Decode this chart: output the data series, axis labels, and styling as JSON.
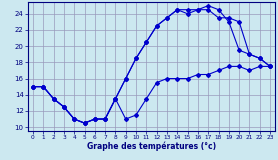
{
  "xlabel": "Graphe des températures (°c)",
  "bg_color": "#cce8f0",
  "grid_color": "#9999bb",
  "line_color": "#0000cc",
  "xlim": [
    -0.5,
    23.5
  ],
  "ylim": [
    9.5,
    25.5
  ],
  "xticks": [
    0,
    1,
    2,
    3,
    4,
    5,
    6,
    7,
    8,
    9,
    10,
    11,
    12,
    13,
    14,
    15,
    16,
    17,
    18,
    19,
    20,
    21,
    22,
    23
  ],
  "yticks": [
    10,
    12,
    14,
    16,
    18,
    20,
    22,
    24
  ],
  "line1_x": [
    0,
    1,
    2,
    3,
    4,
    5,
    6,
    7,
    8,
    9,
    10,
    11,
    12,
    13,
    14,
    15,
    16,
    17,
    18,
    19,
    20,
    21,
    22,
    23
  ],
  "line1_y": [
    15.0,
    15.0,
    13.5,
    12.5,
    11.0,
    10.5,
    11.0,
    11.0,
    13.5,
    11.0,
    11.5,
    13.5,
    15.5,
    16.0,
    16.0,
    16.0,
    16.5,
    16.5,
    17.0,
    17.5,
    17.5,
    17.0,
    17.5,
    17.5
  ],
  "line2_x": [
    0,
    1,
    2,
    3,
    4,
    5,
    6,
    7,
    8,
    9,
    10,
    11,
    12,
    13,
    14,
    15,
    16,
    17,
    18,
    19,
    20,
    21,
    22,
    23
  ],
  "line2_y": [
    15.0,
    15.0,
    13.5,
    12.5,
    11.0,
    10.5,
    11.0,
    11.0,
    13.5,
    16.0,
    18.5,
    20.5,
    22.5,
    23.5,
    24.5,
    24.5,
    24.5,
    25.0,
    24.5,
    23.0,
    19.5,
    19.0,
    18.5,
    17.5
  ],
  "line3_x": [
    0,
    1,
    2,
    3,
    4,
    5,
    6,
    7,
    8,
    9,
    10,
    11,
    12,
    13,
    14,
    15,
    16,
    17,
    18,
    19,
    20,
    21,
    22,
    23
  ],
  "line3_y": [
    15.0,
    15.0,
    13.5,
    12.5,
    11.0,
    10.5,
    11.0,
    11.0,
    13.5,
    16.0,
    18.5,
    20.5,
    22.5,
    23.5,
    24.5,
    24.0,
    24.5,
    24.5,
    23.5,
    23.5,
    23.0,
    19.0,
    18.5,
    17.5
  ]
}
